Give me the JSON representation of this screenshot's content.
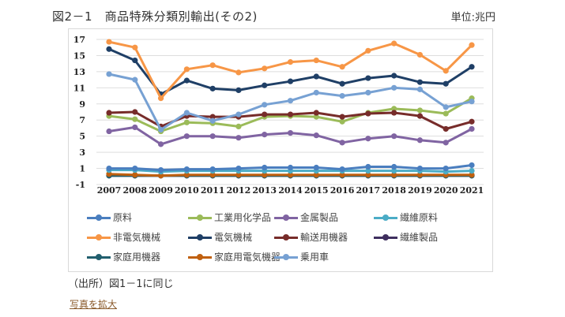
{
  "header": {
    "title": "図2－1　商品特殊分類別輸出(その2)",
    "unit": "単位:兆円"
  },
  "footer": {
    "source": "（出所）図1－1に同じ",
    "enlarge_link": "写真を拡大"
  },
  "chart_data": {
    "type": "line",
    "title": "図2－1　商品特殊分類別輸出(その2)",
    "xlabel": "",
    "ylabel": "単位:兆円",
    "ylim": [
      -1,
      17
    ],
    "yticks": [
      17,
      15,
      13,
      11,
      9,
      7,
      5,
      3,
      1,
      -1
    ],
    "grid": true,
    "legend_position": "bottom",
    "categories": [
      "2007",
      "2008",
      "2009",
      "2010",
      "2011",
      "2012",
      "2013",
      "2014",
      "2015",
      "2016",
      "2017",
      "2018",
      "2019",
      "2020",
      "2021"
    ],
    "series": [
      {
        "name": "原料",
        "color": "#4a7ebf",
        "values": [
          1.0,
          1.0,
          0.8,
          0.9,
          0.9,
          1.0,
          1.1,
          1.1,
          1.1,
          0.9,
          1.2,
          1.2,
          1.0,
          1.0,
          1.4
        ]
      },
      {
        "name": "工業用化学品",
        "color": "#9bbb59",
        "values": [
          7.5,
          7.1,
          5.6,
          6.7,
          6.6,
          6.2,
          7.4,
          7.5,
          7.4,
          6.8,
          7.9,
          8.4,
          8.2,
          7.8,
          9.7
        ]
      },
      {
        "name": "金属製品",
        "color": "#8064a2",
        "values": [
          5.6,
          6.1,
          4.0,
          5.0,
          5.0,
          4.8,
          5.2,
          5.4,
          5.1,
          4.2,
          4.7,
          5.0,
          4.5,
          4.2,
          5.9
        ]
      },
      {
        "name": "繊維原料",
        "color": "#4bacc6",
        "values": [
          0.8,
          0.8,
          0.6,
          0.7,
          0.7,
          0.7,
          0.7,
          0.7,
          0.7,
          0.7,
          0.7,
          0.7,
          0.7,
          0.6,
          0.7
        ]
      },
      {
        "name": "非電気機械",
        "color": "#f79646",
        "values": [
          16.7,
          16.0,
          9.7,
          13.3,
          13.8,
          12.9,
          13.4,
          14.2,
          14.4,
          13.6,
          15.6,
          16.5,
          15.1,
          13.1,
          16.3
        ]
      },
      {
        "name": "電気機械",
        "color": "#1f3f66",
        "values": [
          15.8,
          14.4,
          10.2,
          11.9,
          10.9,
          10.7,
          11.3,
          11.8,
          12.4,
          11.5,
          12.2,
          12.5,
          11.7,
          11.5,
          13.6
        ]
      },
      {
        "name": "輸送用機器",
        "color": "#772c2a",
        "values": [
          7.9,
          8.0,
          6.2,
          7.5,
          7.4,
          7.4,
          7.7,
          7.7,
          7.9,
          7.4,
          7.8,
          7.9,
          7.5,
          5.9,
          6.8
        ]
      },
      {
        "name": "繊維製品",
        "color": "#3f2f5f",
        "values": [
          0.1,
          0.1,
          0.1,
          0.1,
          0.1,
          0.1,
          0.1,
          0.1,
          0.1,
          0.1,
          0.1,
          0.1,
          0.1,
          0.1,
          0.1
        ]
      },
      {
        "name": "家庭用機器",
        "color": "#215f6e",
        "values": [
          0.1,
          0.1,
          0.1,
          0.1,
          0.1,
          0.1,
          0.1,
          0.1,
          0.1,
          0.1,
          0.1,
          0.1,
          0.1,
          0.1,
          0.1
        ]
      },
      {
        "name": "家庭用電気機器",
        "color": "#c0600f",
        "values": [
          0.3,
          0.2,
          0.1,
          0.2,
          0.2,
          0.2,
          0.2,
          0.2,
          0.2,
          0.2,
          0.2,
          0.2,
          0.2,
          0.2,
          0.2
        ]
      },
      {
        "name": "乗用車",
        "color": "#77a1d3",
        "values": [
          12.7,
          12.0,
          5.8,
          7.9,
          6.9,
          7.7,
          8.9,
          9.4,
          10.4,
          10.0,
          10.4,
          11.0,
          10.8,
          8.6,
          9.3
        ]
      }
    ]
  }
}
